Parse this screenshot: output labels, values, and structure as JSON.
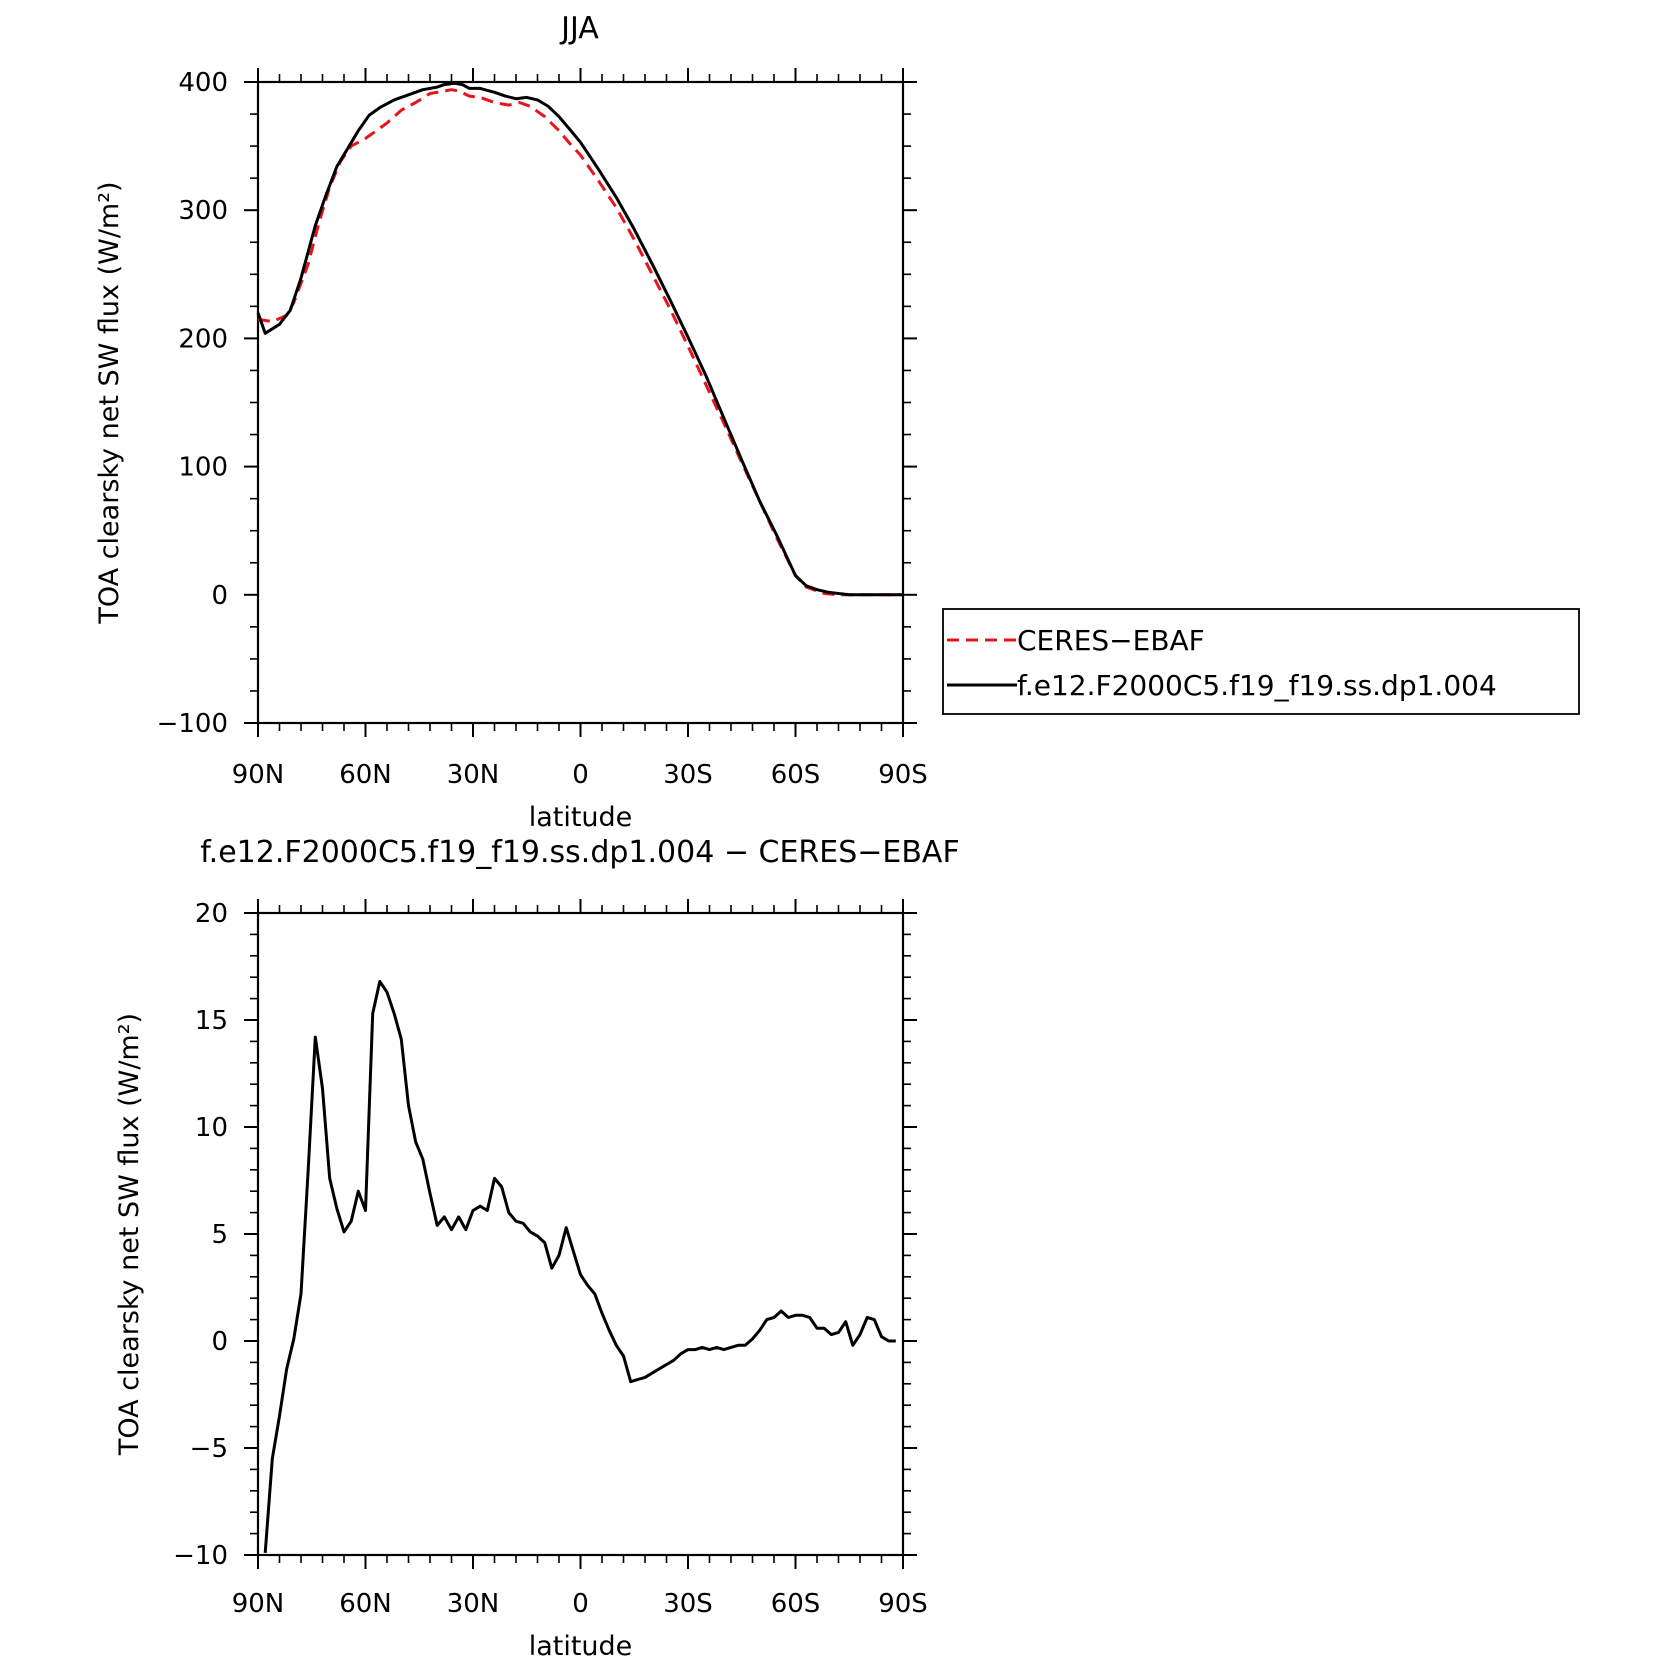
{
  "chart_data": [
    {
      "type": "line",
      "title": "JJA",
      "xlabel": "latitude",
      "ylabel": "TOA clearsky net SW flux (W/m²)",
      "xlim": [
        90,
        -90
      ],
      "ylim": [
        -100,
        400
      ],
      "x_ticks": [
        90,
        60,
        30,
        0,
        -30,
        -60,
        -90
      ],
      "x_tick_labels": [
        "90N",
        "60N",
        "30N",
        "0",
        "30S",
        "60S",
        "90S"
      ],
      "y_ticks": [
        -100,
        0,
        100,
        200,
        300,
        400
      ],
      "y_tick_labels": [
        "−100",
        "0",
        "100",
        "200",
        "300",
        "400"
      ],
      "legend": {
        "placement": "right",
        "entries": [
          "CERES−EBAF",
          "f.e12.F2000C5.f19_f19.ss.dp1.004"
        ]
      },
      "series": [
        {
          "name": "CERES−EBAF",
          "color": "#e8141b",
          "style": "dashed",
          "x": [
            90,
            86,
            82,
            80,
            76,
            73,
            70,
            67,
            64,
            60,
            58,
            54,
            50,
            46,
            42,
            40,
            36,
            34,
            31,
            28,
            24,
            20,
            17,
            14,
            10,
            6,
            3,
            0,
            -5,
            -10,
            -15,
            -20,
            -25,
            -30,
            -35,
            -40,
            -45,
            -50,
            -55,
            -60,
            -63,
            -66,
            -68,
            -72,
            -75,
            -80,
            -85,
            -90
          ],
          "y": [
            215,
            213,
            218,
            228,
            258,
            290,
            318,
            338,
            350,
            356,
            360,
            368,
            378,
            384,
            391,
            392,
            394,
            393,
            389,
            388,
            384,
            382,
            384,
            381,
            373,
            362,
            352,
            343,
            323,
            302,
            277,
            250,
            223,
            194,
            164,
            134,
            103,
            73,
            43,
            15,
            6,
            3,
            1,
            0,
            0,
            0,
            0,
            0
          ]
        },
        {
          "name": "f.e12.F2000C5.f19_f19.ss.dp1.004",
          "color": "#000000",
          "style": "solid",
          "x": [
            90,
            88,
            84,
            81,
            78,
            74,
            71,
            68,
            65,
            62,
            59,
            56,
            52,
            48,
            44,
            40,
            38,
            35,
            33,
            31,
            28,
            24,
            21,
            18,
            15,
            12,
            9,
            6,
            3,
            0,
            -5,
            -10,
            -15,
            -20,
            -25,
            -30,
            -35,
            -40,
            -45,
            -50,
            -55,
            -60,
            -63,
            -66,
            -69,
            -72,
            -75,
            -80,
            -85,
            -90
          ],
          "y": [
            220,
            204,
            211,
            222,
            247,
            288,
            312,
            334,
            348,
            362,
            374,
            380,
            386,
            390,
            394,
            396,
            398,
            399,
            398,
            395,
            395,
            392,
            389,
            387,
            388,
            386,
            381,
            373,
            363,
            353,
            332,
            310,
            285,
            258,
            230,
            201,
            171,
            138,
            105,
            73,
            45,
            15,
            7,
            4,
            2,
            1,
            0,
            0,
            0,
            0
          ]
        }
      ]
    },
    {
      "type": "line",
      "title": "f.e12.F2000C5.f19_f19.ss.dp1.004 − CERES−EBAF",
      "xlabel": "latitude",
      "ylabel": "TOA clearsky net SW flux (W/m²)",
      "xlim": [
        90,
        -90
      ],
      "ylim": [
        -10,
        20
      ],
      "x_ticks": [
        90,
        60,
        30,
        0,
        -30,
        -60,
        -90
      ],
      "x_tick_labels": [
        "90N",
        "60N",
        "30N",
        "0",
        "30S",
        "60S",
        "90S"
      ],
      "y_ticks": [
        -10,
        -5,
        0,
        5,
        10,
        15,
        20
      ],
      "y_tick_labels": [
        "−10",
        "−5",
        "0",
        "5",
        "10",
        "15",
        "20"
      ],
      "series": [
        {
          "color": "#000000",
          "style": "solid",
          "x": [
            88,
            86,
            84,
            82,
            80,
            78,
            76,
            74,
            72,
            70,
            68,
            66,
            64,
            62,
            60,
            58,
            56,
            54,
            52,
            50,
            48,
            46,
            44,
            42,
            40,
            38,
            36,
            34,
            32,
            30,
            28,
            26,
            24,
            22,
            20,
            18,
            16,
            14,
            12,
            10,
            8,
            6,
            4,
            2,
            0,
            -2,
            -4,
            -6,
            -8,
            -10,
            -12,
            -14,
            -16,
            -18,
            -20,
            -22,
            -24,
            -26,
            -28,
            -30,
            -32,
            -34,
            -36,
            -38,
            -40,
            -42,
            -44,
            -46,
            -48,
            -50,
            -52,
            -54,
            -56,
            -58,
            -60,
            -62,
            -64,
            -66,
            -68,
            -70,
            -72,
            -74,
            -76,
            -78,
            -80,
            -82,
            -84,
            -86,
            -88
          ],
          "y": [
            -9.9,
            -5.5,
            -3.5,
            -1.3,
            0.1,
            2.2,
            8.0,
            14.2,
            11.8,
            7.6,
            6.2,
            5.1,
            5.6,
            7.0,
            6.1,
            15.3,
            16.8,
            16.3,
            15.3,
            14.1,
            11.0,
            9.3,
            8.5,
            6.9,
            5.4,
            5.8,
            5.2,
            5.8,
            5.2,
            6.1,
            6.3,
            6.1,
            7.6,
            7.2,
            6.0,
            5.6,
            5.5,
            5.1,
            4.9,
            4.6,
            3.4,
            4.0,
            5.3,
            4.2,
            3.1,
            2.6,
            2.2,
            1.3,
            0.5,
            -0.2,
            -0.7,
            -1.9,
            -1.8,
            -1.7,
            -1.5,
            -1.3,
            -1.1,
            -0.9,
            -0.6,
            -0.4,
            -0.4,
            -0.3,
            -0.4,
            -0.3,
            -0.4,
            -0.3,
            -0.2,
            -0.2,
            0.1,
            0.5,
            1.0,
            1.1,
            1.4,
            1.1,
            1.2,
            1.2,
            1.1,
            0.6,
            0.6,
            0.3,
            0.4,
            0.9,
            -0.2,
            0.3,
            1.1,
            1.0,
            0.2,
            0.0,
            0.0
          ]
        }
      ]
    }
  ]
}
